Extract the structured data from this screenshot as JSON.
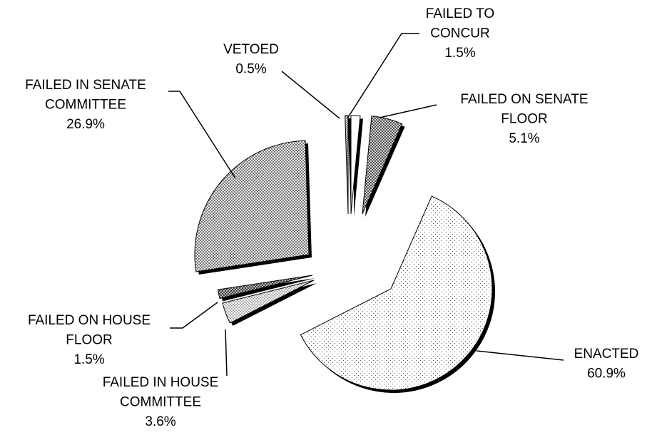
{
  "chart_data": {
    "type": "pie",
    "categories": [
      "FAILED TO CONCUR",
      "FAILED ON SENATE FLOOR",
      "ENACTED",
      "FAILED IN HOUSE COMMITTEE",
      "FAILED ON HOUSE FLOOR",
      "FAILED IN SENATE COMMITTEE",
      "VETOED"
    ],
    "values": [
      1.5,
      5.1,
      60.9,
      3.6,
      1.5,
      26.9,
      0.5
    ],
    "value_labels": [
      "1.5%",
      "5.1%",
      "60.9%",
      "3.6%",
      "1.5%",
      "26.9%",
      "0.5%"
    ]
  }
}
